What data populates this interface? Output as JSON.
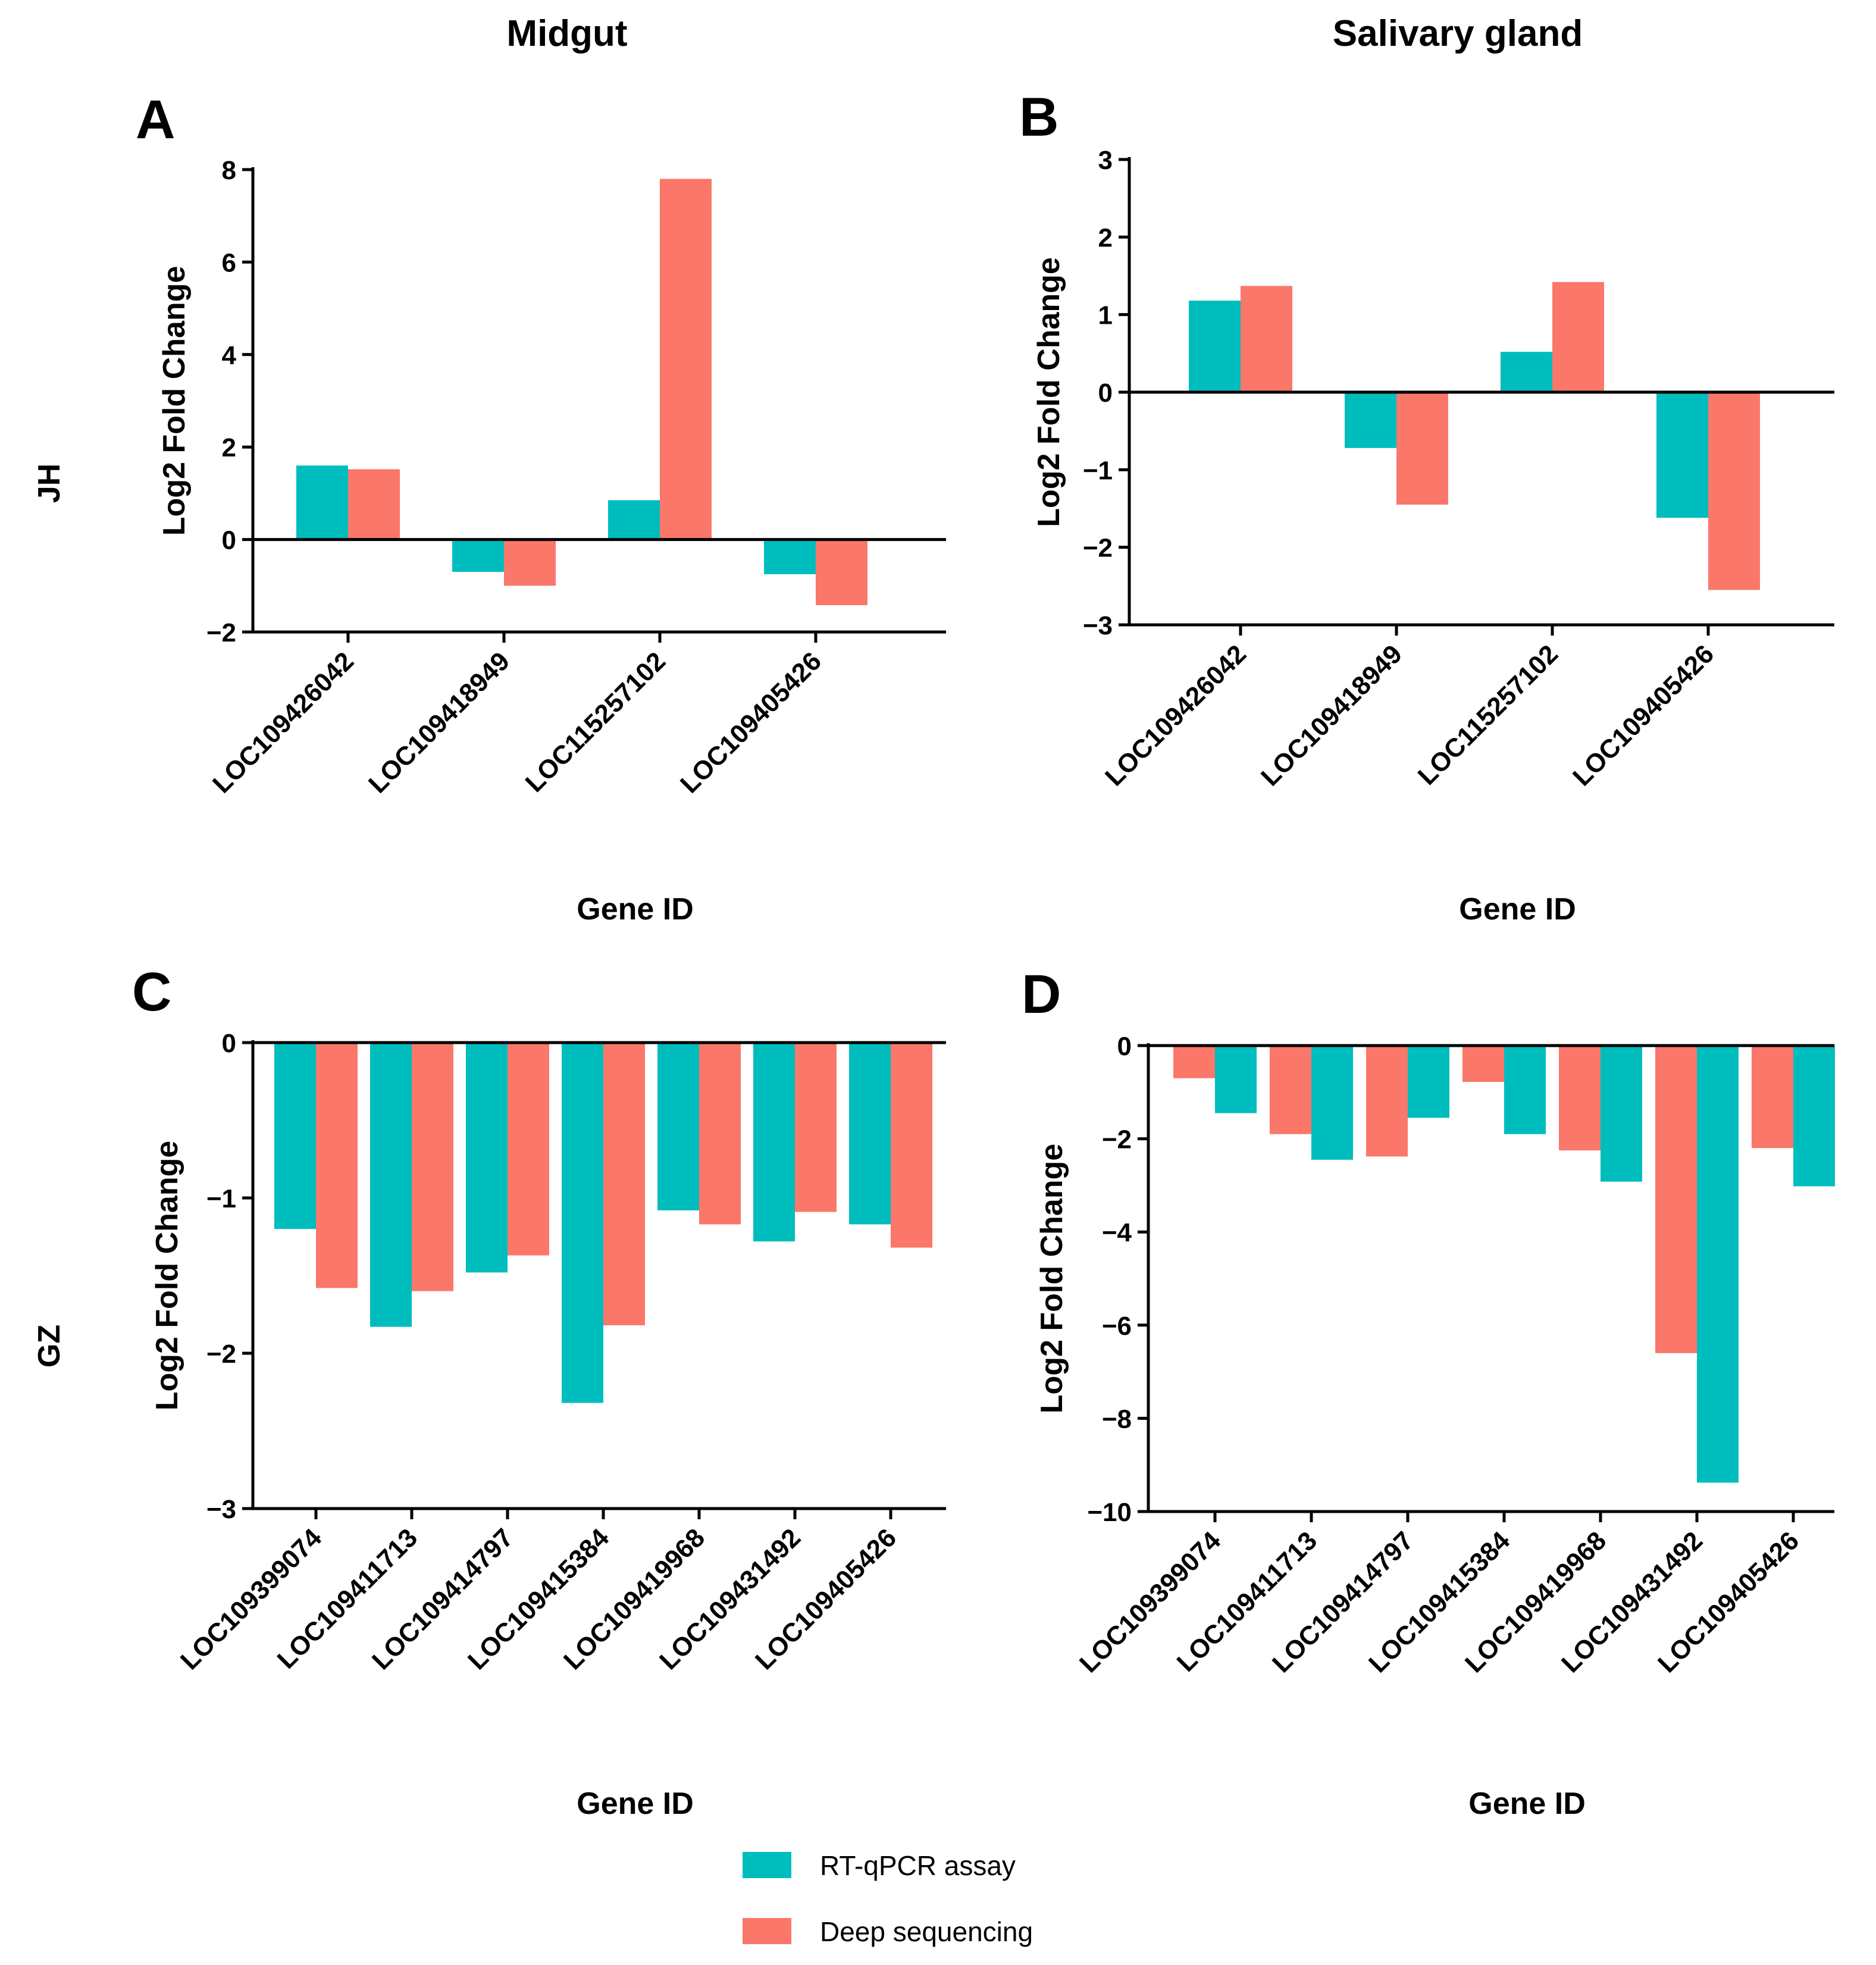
{
  "column_titles": [
    "Midgut",
    "Salivary gland"
  ],
  "row_labels": [
    "JH",
    "GZ"
  ],
  "colors": {
    "rtqpcr": "#00BDBD",
    "deepseq": "#FA776A"
  },
  "legend": [
    {
      "label": "RT-qPCR assay",
      "color": "#00BDBD"
    },
    {
      "label": "Deep sequencing",
      "color": "#FA776A"
    }
  ],
  "chart_data": [
    {
      "panel": "A",
      "type": "bar",
      "title": "",
      "xlabel": "Gene ID",
      "ylabel": "Log2 Fold Change",
      "ylim": [
        -2,
        8
      ],
      "yticks": [
        -2,
        0,
        2,
        4,
        6,
        8
      ],
      "ytick_labels": [
        "−2",
        "0",
        "2",
        "4",
        "6",
        "8"
      ],
      "categories": [
        "LOC109426042",
        "LOC109418949",
        "LOC115257102",
        "LOC109405426"
      ],
      "series": [
        {
          "name": "RT-qPCR assay",
          "values": [
            1.6,
            -0.7,
            0.85,
            -0.75
          ]
        },
        {
          "name": "Deep sequencing",
          "values": [
            1.52,
            -1.0,
            7.8,
            -1.42
          ]
        }
      ]
    },
    {
      "panel": "B",
      "type": "bar",
      "title": "",
      "xlabel": "Gene ID",
      "ylabel": "Log2 Fold Change",
      "ylim": [
        -3,
        3
      ],
      "yticks": [
        -3,
        -2,
        -1,
        0,
        1,
        2,
        3
      ],
      "ytick_labels": [
        "−3",
        "−2",
        "−1",
        "0",
        "1",
        "2",
        "3"
      ],
      "categories": [
        "LOC109426042",
        "LOC109418949",
        "LOC115257102",
        "LOC109405426"
      ],
      "series": [
        {
          "name": "RT-qPCR assay",
          "values": [
            1.18,
            -0.72,
            0.52,
            -1.62
          ]
        },
        {
          "name": "Deep sequencing",
          "values": [
            1.37,
            -1.45,
            1.42,
            -2.55
          ]
        }
      ]
    },
    {
      "panel": "C",
      "type": "bar",
      "title": "",
      "xlabel": "Gene ID",
      "ylabel": "Log2 Fold Change",
      "ylim": [
        -3,
        0
      ],
      "yticks": [
        -3,
        -2,
        -1,
        0
      ],
      "ytick_labels": [
        "−3",
        "−2",
        "−1",
        "0"
      ],
      "categories": [
        "LOC109399074",
        "LOC109411713",
        "LOC109414797",
        "LOC109415384",
        "LOC109419968",
        "LOC109431492",
        "LOC109405426"
      ],
      "series": [
        {
          "name": "RT-qPCR assay",
          "values": [
            -1.2,
            -1.83,
            -1.48,
            -2.32,
            -1.08,
            -1.28,
            -1.17
          ]
        },
        {
          "name": "Deep sequencing",
          "values": [
            -1.58,
            -1.6,
            -1.37,
            -1.82,
            -1.17,
            -1.09,
            -1.32
          ]
        }
      ]
    },
    {
      "panel": "D",
      "type": "bar",
      "title": "",
      "xlabel": "Gene ID",
      "ylabel": "Log2 Fold Change",
      "ylim": [
        -10,
        0
      ],
      "yticks": [
        -10,
        -8,
        -6,
        -4,
        -2,
        0
      ],
      "ytick_labels": [
        "−10",
        "−8",
        "−6",
        "−4",
        "−2",
        "0"
      ],
      "categories": [
        "LOC109399074",
        "LOC109411713",
        "LOC109414797",
        "LOC109415384",
        "LOC109419968",
        "LOC109431492",
        "LOC109405426"
      ],
      "series": [
        {
          "name": "Deep sequencing",
          "values": [
            -0.7,
            -1.9,
            -2.38,
            -0.78,
            -2.25,
            -6.6,
            -2.2
          ]
        },
        {
          "name": "RT-qPCR assay",
          "values": [
            -1.45,
            -2.45,
            -1.55,
            -1.9,
            -2.92,
            -9.38,
            -3.02
          ]
        }
      ]
    }
  ]
}
